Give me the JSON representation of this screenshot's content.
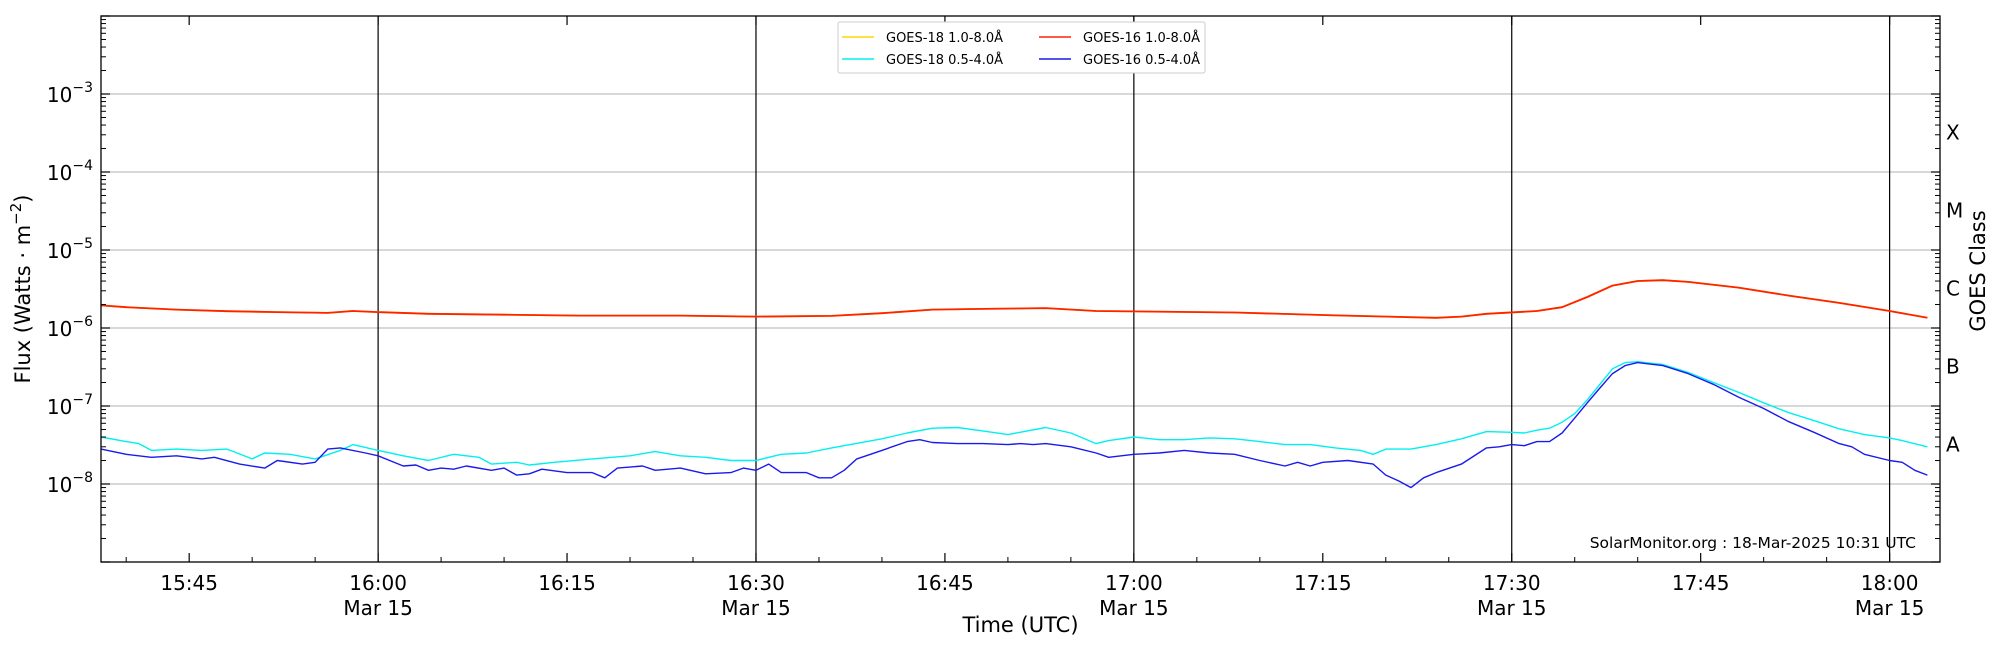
{
  "chart_data": {
    "type": "line",
    "xlabel": "Time (UTC)",
    "ylabel": "Flux (Watts · m",
    "ylabel_exp": "−2",
    "ylabel_close": ")",
    "y2label": "GOES Class",
    "yscale": "log",
    "ylim": [
      1e-09,
      0.01
    ],
    "xlim": [
      "15:38",
      "18:04"
    ],
    "y_ticks": [
      {
        "exp": -3,
        "label": "10",
        "sup": "−3"
      },
      {
        "exp": -4,
        "label": "10",
        "sup": "−4"
      },
      {
        "exp": -5,
        "label": "10",
        "sup": "−5"
      },
      {
        "exp": -6,
        "label": "10",
        "sup": "−6"
      },
      {
        "exp": -7,
        "label": "10",
        "sup": "−7"
      },
      {
        "exp": -8,
        "label": "10",
        "sup": "−8"
      }
    ],
    "x_ticks": [
      {
        "time": "15:45",
        "label": "15:45",
        "date": ""
      },
      {
        "time": "16:00",
        "label": "16:00",
        "date": "Mar 15"
      },
      {
        "time": "16:15",
        "label": "16:15",
        "date": ""
      },
      {
        "time": "16:30",
        "label": "16:30",
        "date": "Mar 15"
      },
      {
        "time": "16:45",
        "label": "16:45",
        "date": ""
      },
      {
        "time": "17:00",
        "label": "17:00",
        "date": "Mar 15"
      },
      {
        "time": "17:15",
        "label": "17:15",
        "date": ""
      },
      {
        "time": "17:30",
        "label": "17:30",
        "date": "Mar 15"
      },
      {
        "time": "17:45",
        "label": "17:45",
        "date": ""
      },
      {
        "time": "18:00",
        "label": "18:00",
        "date": "Mar 15"
      }
    ],
    "vlines": [
      "16:00",
      "16:30",
      "17:00",
      "17:30",
      "18:00"
    ],
    "goes_classes": [
      {
        "label": "X",
        "flux": 0.00032
      },
      {
        "label": "M",
        "flux": 3.2e-05
      },
      {
        "label": "C",
        "flux": 3.2e-06
      },
      {
        "label": "B",
        "flux": 3.2e-07
      },
      {
        "label": "A",
        "flux": 3.2e-08
      }
    ],
    "grid": true,
    "legend_position": "top-center",
    "credit": "SolarMonitor.org : 18-Mar-2025 10:31 UTC",
    "series": [
      {
        "name": "GOES-18 1.0-8.0Å",
        "color": "#ffd700",
        "draw_order": 1,
        "points": [
          [
            "15:38",
            1.95e-06
          ],
          [
            "15:40",
            1.85e-06
          ],
          [
            "15:44",
            1.72e-06
          ],
          [
            "15:48",
            1.64e-06
          ],
          [
            "15:52",
            1.6e-06
          ],
          [
            "15:56",
            1.56e-06
          ],
          [
            "15:58",
            1.65e-06
          ],
          [
            "16:00",
            1.6e-06
          ],
          [
            "16:04",
            1.52e-06
          ],
          [
            "16:10",
            1.48e-06
          ],
          [
            "16:16",
            1.44e-06
          ],
          [
            "16:24",
            1.44e-06
          ],
          [
            "16:30",
            1.4e-06
          ],
          [
            "16:36",
            1.43e-06
          ],
          [
            "16:40",
            1.55e-06
          ],
          [
            "16:44",
            1.72e-06
          ],
          [
            "16:48",
            1.76e-06
          ],
          [
            "16:53",
            1.8e-06
          ],
          [
            "16:57",
            1.65e-06
          ],
          [
            "17:00",
            1.63e-06
          ],
          [
            "17:08",
            1.58e-06
          ],
          [
            "17:16",
            1.45e-06
          ],
          [
            "17:24",
            1.35e-06
          ],
          [
            "17:26",
            1.4e-06
          ],
          [
            "17:28",
            1.52e-06
          ],
          [
            "17:32",
            1.65e-06
          ],
          [
            "17:34",
            1.85e-06
          ],
          [
            "17:36",
            2.5e-06
          ],
          [
            "17:38",
            3.5e-06
          ],
          [
            "17:40",
            4e-06
          ],
          [
            "17:42",
            4.1e-06
          ],
          [
            "17:44",
            3.9e-06
          ],
          [
            "17:48",
            3.3e-06
          ],
          [
            "17:52",
            2.6e-06
          ],
          [
            "17:56",
            2.1e-06
          ],
          [
            "18:00",
            1.65e-06
          ],
          [
            "18:03",
            1.35e-06
          ]
        ]
      },
      {
        "name": "GOES-16 1.0-8.0Å",
        "color": "#ff2200",
        "draw_order": 3,
        "points": [
          [
            "15:38",
            1.95e-06
          ],
          [
            "15:40",
            1.85e-06
          ],
          [
            "15:44",
            1.72e-06
          ],
          [
            "15:48",
            1.64e-06
          ],
          [
            "15:52",
            1.6e-06
          ],
          [
            "15:56",
            1.56e-06
          ],
          [
            "15:58",
            1.65e-06
          ],
          [
            "16:00",
            1.6e-06
          ],
          [
            "16:04",
            1.52e-06
          ],
          [
            "16:10",
            1.48e-06
          ],
          [
            "16:16",
            1.44e-06
          ],
          [
            "16:24",
            1.44e-06
          ],
          [
            "16:30",
            1.4e-06
          ],
          [
            "16:36",
            1.43e-06
          ],
          [
            "16:40",
            1.55e-06
          ],
          [
            "16:44",
            1.72e-06
          ],
          [
            "16:48",
            1.76e-06
          ],
          [
            "16:53",
            1.8e-06
          ],
          [
            "16:57",
            1.65e-06
          ],
          [
            "17:00",
            1.63e-06
          ],
          [
            "17:08",
            1.58e-06
          ],
          [
            "17:16",
            1.45e-06
          ],
          [
            "17:24",
            1.35e-06
          ],
          [
            "17:26",
            1.4e-06
          ],
          [
            "17:28",
            1.52e-06
          ],
          [
            "17:32",
            1.65e-06
          ],
          [
            "17:34",
            1.85e-06
          ],
          [
            "17:36",
            2.5e-06
          ],
          [
            "17:38",
            3.5e-06
          ],
          [
            "17:40",
            4e-06
          ],
          [
            "17:42",
            4.1e-06
          ],
          [
            "17:44",
            3.9e-06
          ],
          [
            "17:48",
            3.3e-06
          ],
          [
            "17:52",
            2.6e-06
          ],
          [
            "17:56",
            2.1e-06
          ],
          [
            "18:00",
            1.65e-06
          ],
          [
            "18:03",
            1.35e-06
          ]
        ]
      },
      {
        "name": "GOES-18 0.5-4.0Å",
        "color": "#00f0f0",
        "draw_order": 2,
        "points": [
          [
            "15:38",
            4e-08
          ],
          [
            "15:40",
            3.5e-08
          ],
          [
            "15:41",
            3.3e-08
          ],
          [
            "15:42",
            2.7e-08
          ],
          [
            "15:44",
            2.8e-08
          ],
          [
            "15:46",
            2.7e-08
          ],
          [
            "15:48",
            2.8e-08
          ],
          [
            "15:50",
            2.1e-08
          ],
          [
            "15:51",
            2.5e-08
          ],
          [
            "15:53",
            2.4e-08
          ],
          [
            "15:55",
            2.1e-08
          ],
          [
            "15:57",
            2.7e-08
          ],
          [
            "15:58",
            3.2e-08
          ],
          [
            "16:00",
            2.7e-08
          ],
          [
            "16:02",
            2.3e-08
          ],
          [
            "16:04",
            2e-08
          ],
          [
            "16:06",
            2.4e-08
          ],
          [
            "16:08",
            2.2e-08
          ],
          [
            "16:09",
            1.8e-08
          ],
          [
            "16:11",
            1.9e-08
          ],
          [
            "16:12",
            1.75e-08
          ],
          [
            "16:14",
            1.9e-08
          ],
          [
            "16:17",
            2.1e-08
          ],
          [
            "16:20",
            2.3e-08
          ],
          [
            "16:22",
            2.6e-08
          ],
          [
            "16:24",
            2.3e-08
          ],
          [
            "16:26",
            2.2e-08
          ],
          [
            "16:28",
            2e-08
          ],
          [
            "16:30",
            2e-08
          ],
          [
            "16:32",
            2.4e-08
          ],
          [
            "16:34",
            2.5e-08
          ],
          [
            "16:36",
            2.9e-08
          ],
          [
            "16:40",
            3.8e-08
          ],
          [
            "16:42",
            4.5e-08
          ],
          [
            "16:44",
            5.2e-08
          ],
          [
            "16:46",
            5.3e-08
          ],
          [
            "16:48",
            4.8e-08
          ],
          [
            "16:50",
            4.3e-08
          ],
          [
            "16:53",
            5.3e-08
          ],
          [
            "16:55",
            4.5e-08
          ],
          [
            "16:57",
            3.3e-08
          ],
          [
            "16:58",
            3.6e-08
          ],
          [
            "17:00",
            4e-08
          ],
          [
            "17:02",
            3.7e-08
          ],
          [
            "17:04",
            3.7e-08
          ],
          [
            "17:06",
            3.9e-08
          ],
          [
            "17:08",
            3.8e-08
          ],
          [
            "17:10",
            3.5e-08
          ],
          [
            "17:12",
            3.2e-08
          ],
          [
            "17:14",
            3.2e-08
          ],
          [
            "17:16",
            2.9e-08
          ],
          [
            "17:18",
            2.7e-08
          ],
          [
            "17:19",
            2.4e-08
          ],
          [
            "17:20",
            2.8e-08
          ],
          [
            "17:22",
            2.8e-08
          ],
          [
            "17:24",
            3.2e-08
          ],
          [
            "17:26",
            3.8e-08
          ],
          [
            "17:28",
            4.7e-08
          ],
          [
            "17:30",
            4.6e-08
          ],
          [
            "17:31",
            4.5e-08
          ],
          [
            "17:32",
            4.9e-08
          ],
          [
            "17:33",
            5.2e-08
          ],
          [
            "17:34",
            6.2e-08
          ],
          [
            "17:35",
            8e-08
          ],
          [
            "17:36",
            1.2e-07
          ],
          [
            "17:37",
            1.9e-07
          ],
          [
            "17:38",
            3e-07
          ],
          [
            "17:39",
            3.6e-07
          ],
          [
            "17:40",
            3.7e-07
          ],
          [
            "17:42",
            3.4e-07
          ],
          [
            "17:44",
            2.7e-07
          ],
          [
            "17:46",
            2e-07
          ],
          [
            "17:48",
            1.5e-07
          ],
          [
            "17:50",
            1.1e-07
          ],
          [
            "17:52",
            8.2e-08
          ],
          [
            "17:54",
            6.5e-08
          ],
          [
            "17:56",
            5.1e-08
          ],
          [
            "17:58",
            4.3e-08
          ],
          [
            "18:00",
            3.9e-08
          ],
          [
            "18:01",
            3.6e-08
          ],
          [
            "18:03",
            3e-08
          ]
        ]
      },
      {
        "name": "GOES-16 0.5-4.0Å",
        "color": "#1a1aee",
        "draw_order": 4,
        "points": [
          [
            "15:38",
            2.8e-08
          ],
          [
            "15:40",
            2.4e-08
          ],
          [
            "15:42",
            2.2e-08
          ],
          [
            "15:44",
            2.3e-08
          ],
          [
            "15:46",
            2.1e-08
          ],
          [
            "15:47",
            2.2e-08
          ],
          [
            "15:49",
            1.8e-08
          ],
          [
            "15:51",
            1.6e-08
          ],
          [
            "15:52",
            2e-08
          ],
          [
            "15:54",
            1.8e-08
          ],
          [
            "15:55",
            1.9e-08
          ],
          [
            "15:56",
            2.8e-08
          ],
          [
            "15:57",
            2.9e-08
          ],
          [
            "15:59",
            2.5e-08
          ],
          [
            "16:00",
            2.3e-08
          ],
          [
            "16:02",
            1.7e-08
          ],
          [
            "16:03",
            1.75e-08
          ],
          [
            "16:04",
            1.5e-08
          ],
          [
            "16:05",
            1.6e-08
          ],
          [
            "16:06",
            1.55e-08
          ],
          [
            "16:07",
            1.7e-08
          ],
          [
            "16:09",
            1.5e-08
          ],
          [
            "16:10",
            1.6e-08
          ],
          [
            "16:11",
            1.3e-08
          ],
          [
            "16:12",
            1.35e-08
          ],
          [
            "16:13",
            1.55e-08
          ],
          [
            "16:15",
            1.4e-08
          ],
          [
            "16:17",
            1.4e-08
          ],
          [
            "16:18",
            1.2e-08
          ],
          [
            "16:19",
            1.6e-08
          ],
          [
            "16:21",
            1.7e-08
          ],
          [
            "16:22",
            1.5e-08
          ],
          [
            "16:24",
            1.6e-08
          ],
          [
            "16:26",
            1.35e-08
          ],
          [
            "16:28",
            1.4e-08
          ],
          [
            "16:29",
            1.6e-08
          ],
          [
            "16:30",
            1.5e-08
          ],
          [
            "16:31",
            1.8e-08
          ],
          [
            "16:32",
            1.4e-08
          ],
          [
            "16:34",
            1.4e-08
          ],
          [
            "16:35",
            1.2e-08
          ],
          [
            "16:36",
            1.2e-08
          ],
          [
            "16:37",
            1.5e-08
          ],
          [
            "16:38",
            2.1e-08
          ],
          [
            "16:40",
            2.7e-08
          ],
          [
            "16:42",
            3.5e-08
          ],
          [
            "16:43",
            3.7e-08
          ],
          [
            "16:44",
            3.4e-08
          ],
          [
            "16:46",
            3.3e-08
          ],
          [
            "16:48",
            3.3e-08
          ],
          [
            "16:50",
            3.2e-08
          ],
          [
            "16:51",
            3.3e-08
          ],
          [
            "16:52",
            3.2e-08
          ],
          [
            "16:53",
            3.3e-08
          ],
          [
            "16:55",
            3e-08
          ],
          [
            "16:57",
            2.5e-08
          ],
          [
            "16:58",
            2.2e-08
          ],
          [
            "17:00",
            2.4e-08
          ],
          [
            "17:02",
            2.5e-08
          ],
          [
            "17:04",
            2.7e-08
          ],
          [
            "17:06",
            2.5e-08
          ],
          [
            "17:08",
            2.4e-08
          ],
          [
            "17:10",
            2e-08
          ],
          [
            "17:12",
            1.7e-08
          ],
          [
            "17:13",
            1.9e-08
          ],
          [
            "17:14",
            1.7e-08
          ],
          [
            "17:15",
            1.9e-08
          ],
          [
            "17:17",
            2e-08
          ],
          [
            "17:19",
            1.8e-08
          ],
          [
            "17:20",
            1.3e-08
          ],
          [
            "17:21",
            1.1e-08
          ],
          [
            "17:22",
            9e-09
          ],
          [
            "17:23",
            1.2e-08
          ],
          [
            "17:24",
            1.4e-08
          ],
          [
            "17:26",
            1.8e-08
          ],
          [
            "17:28",
            2.9e-08
          ],
          [
            "17:29",
            3e-08
          ],
          [
            "17:30",
            3.2e-08
          ],
          [
            "17:31",
            3.1e-08
          ],
          [
            "17:32",
            3.5e-08
          ],
          [
            "17:33",
            3.5e-08
          ],
          [
            "17:34",
            4.5e-08
          ],
          [
            "17:35",
            7e-08
          ],
          [
            "17:36",
            1.1e-07
          ],
          [
            "17:37",
            1.7e-07
          ],
          [
            "17:38",
            2.6e-07
          ],
          [
            "17:39",
            3.3e-07
          ],
          [
            "17:40",
            3.6e-07
          ],
          [
            "17:42",
            3.3e-07
          ],
          [
            "17:44",
            2.6e-07
          ],
          [
            "17:46",
            1.9e-07
          ],
          [
            "17:48",
            1.3e-07
          ],
          [
            "17:50",
            9.3e-08
          ],
          [
            "17:52",
            6.3e-08
          ],
          [
            "17:54",
            4.6e-08
          ],
          [
            "17:56",
            3.3e-08
          ],
          [
            "17:57",
            3e-08
          ],
          [
            "17:58",
            2.4e-08
          ],
          [
            "18:00",
            2e-08
          ],
          [
            "18:01",
            1.9e-08
          ],
          [
            "18:02",
            1.5e-08
          ],
          [
            "18:03",
            1.3e-08
          ]
        ]
      }
    ],
    "legend_order": [
      0,
      2,
      1,
      3
    ]
  }
}
